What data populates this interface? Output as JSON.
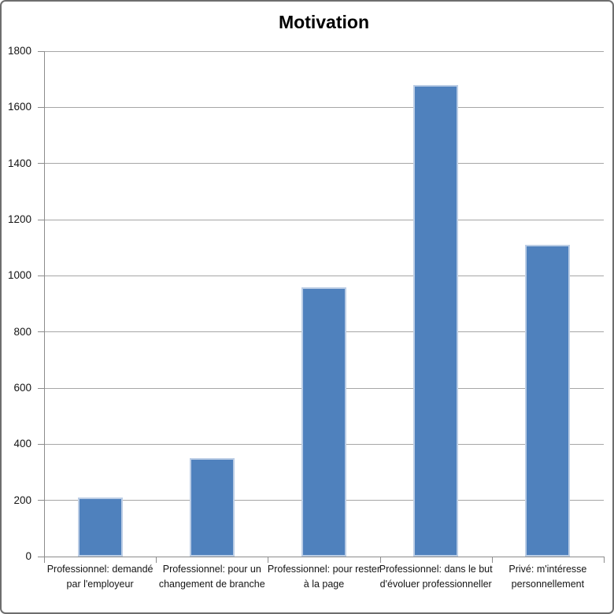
{
  "chart_data": {
    "type": "bar",
    "title": "Motivation",
    "categories": [
      "Professionnel: demandé par l'employeur",
      "Professionnel: pour un changement de branche",
      "Professionnel: pour rester à la page",
      "Professionnel: dans le but d'évoluer professionneller",
      "Privé: m'intéresse personnellement"
    ],
    "values": [
      210,
      350,
      960,
      1680,
      1110
    ],
    "xlabel": "",
    "ylabel": "",
    "ylim": [
      0,
      1800
    ],
    "ytick_step": 200,
    "ytick_labels": [
      "0",
      "200",
      "400",
      "600",
      "800",
      "1000",
      "1200",
      "1400",
      "1600",
      "1800"
    ],
    "grid": true,
    "legend": "none",
    "colors": {
      "bar_fill": "#4F81BD",
      "bar_border": "#BBCDE5",
      "gridline": "#A6A6A6",
      "axis": "#8C8C8C",
      "text": "#141414",
      "frame_border": "#6E6E6E",
      "background": "#FFFFFF"
    }
  }
}
